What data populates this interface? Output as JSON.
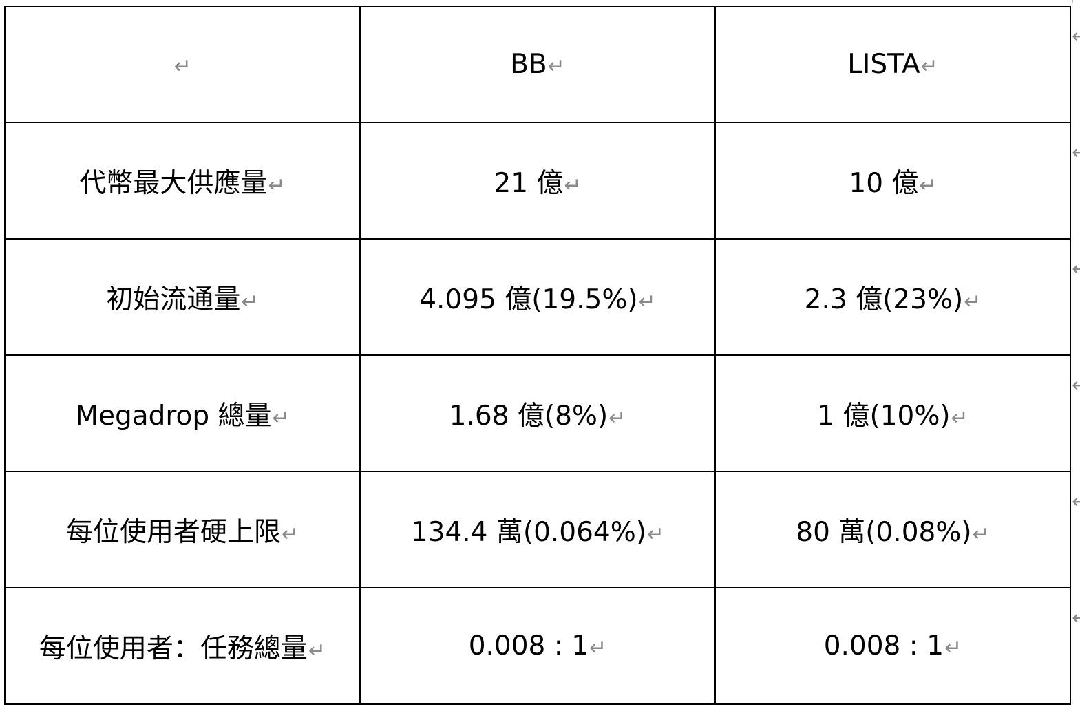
{
  "paragraph_mark": "↵",
  "row_end_mark": "←",
  "table": {
    "header": [
      "",
      "BB",
      "LISTA"
    ],
    "rows": [
      [
        "代幣最大供應量",
        "21 億",
        "10 億"
      ],
      [
        "初始流通量",
        "4.095 億(19.5%)",
        "2.3 億(23%)"
      ],
      [
        "Megadrop 總量",
        "1.68 億(8%)",
        "1 億(10%)"
      ],
      [
        "每位使用者硬上限",
        "134.4 萬(0.064%)",
        "80 萬(0.08%)"
      ],
      [
        "每位使用者：任務總量",
        "0.008 : 1",
        "0.008 : 1"
      ]
    ]
  }
}
